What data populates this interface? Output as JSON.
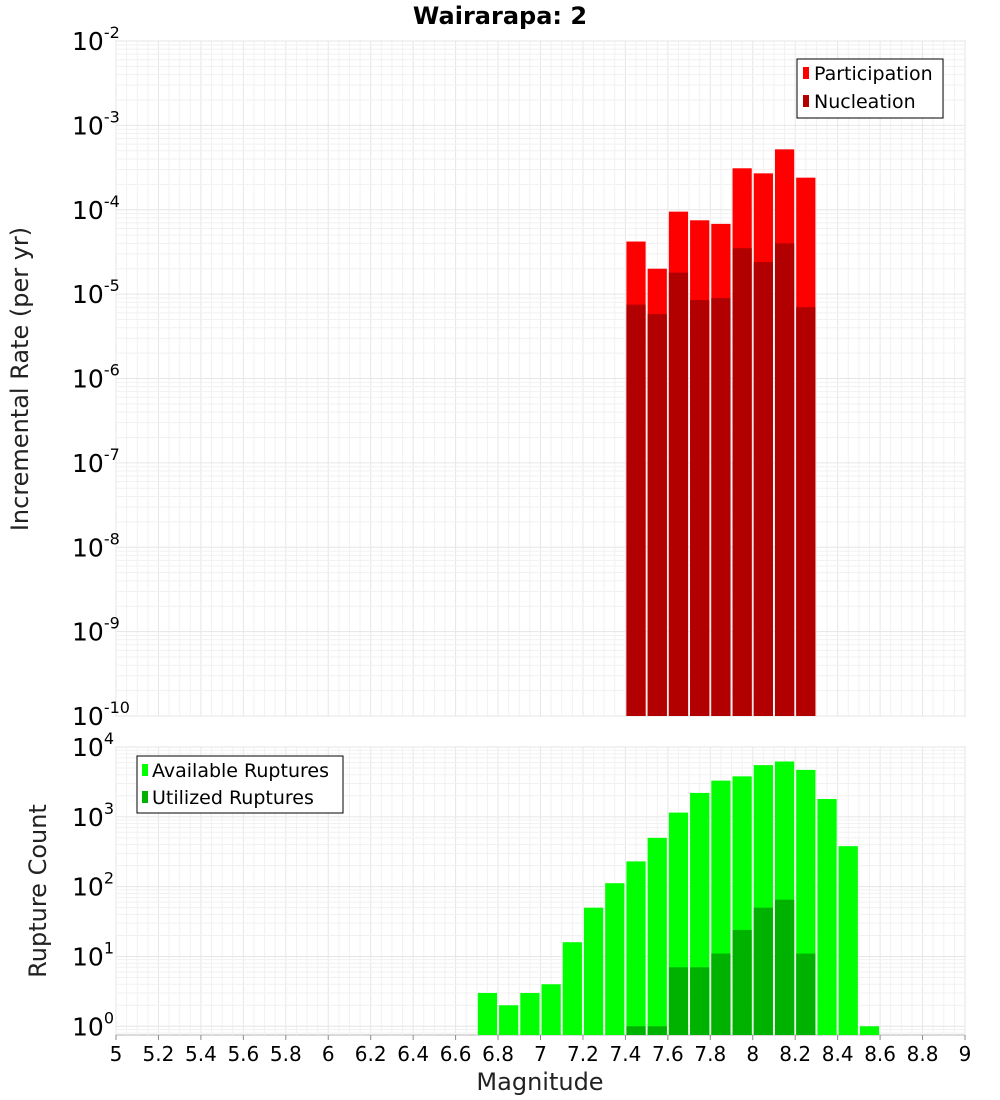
{
  "title": "Wairarapa: 2",
  "chart_data": [
    {
      "type": "bar",
      "ylabel": "Incremental Rate (per yr)",
      "xlabel": "",
      "yscale": "log",
      "ylim": [
        1e-10,
        0.01
      ],
      "xlim": [
        5,
        9
      ],
      "grid": true,
      "legend_position": "top-right",
      "y_tick_exponents": [
        "-10",
        "-9",
        "-8",
        "-7",
        "-6",
        "-5",
        "-4",
        "-3",
        "-2"
      ],
      "y_tick_base": "10",
      "bin_width": 0.1,
      "x": [
        7.45,
        7.55,
        7.65,
        7.75,
        7.85,
        7.95,
        8.05,
        8.15,
        8.25
      ],
      "series": [
        {
          "name": "Participation",
          "color": "#ff0000",
          "values": [
            4.2e-05,
            2e-05,
            9.5e-05,
            7.5e-05,
            6.8e-05,
            0.00031,
            0.00027,
            0.00052,
            0.00024
          ]
        },
        {
          "name": "Nucleation",
          "color": "#b20000",
          "values": [
            7.5e-06,
            5.8e-06,
            1.8e-05,
            8.5e-06,
            9e-06,
            3.5e-05,
            2.4e-05,
            4e-05,
            7e-06
          ]
        }
      ]
    },
    {
      "type": "bar",
      "ylabel": "Rupture Count",
      "xlabel": "Magnitude",
      "yscale": "log",
      "ylim": [
        0.75,
        10000
      ],
      "xlim": [
        5,
        9
      ],
      "grid": true,
      "legend_position": "top-left",
      "y_tick_exponents": [
        "0",
        "1",
        "2",
        "3",
        "4"
      ],
      "y_tick_base": "10",
      "x_ticks": [
        "5",
        "5.2",
        "5.4",
        "5.6",
        "5.8",
        "6",
        "6.2",
        "6.4",
        "6.6",
        "6.8",
        "7",
        "7.2",
        "7.4",
        "7.6",
        "7.8",
        "8",
        "8.2",
        "8.4",
        "8.6",
        "8.8",
        "9"
      ],
      "bin_width": 0.1,
      "x": [
        6.75,
        6.85,
        6.95,
        7.05,
        7.15,
        7.25,
        7.35,
        7.45,
        7.55,
        7.65,
        7.75,
        7.85,
        7.95,
        8.05,
        8.15,
        8.25,
        8.35,
        8.45,
        8.55
      ],
      "series": [
        {
          "name": "Available Ruptures",
          "color": "#00ff00",
          "values": [
            3,
            2,
            3,
            4,
            16,
            50,
            112,
            230,
            500,
            1150,
            2200,
            3300,
            3800,
            5500,
            6200,
            4700,
            1800,
            380,
            1
          ]
        },
        {
          "name": "Utilized Ruptures",
          "color": "#00b200",
          "values": [
            0,
            0,
            0,
            0,
            0,
            0,
            0,
            1,
            1,
            7,
            7,
            11,
            24,
            50,
            65,
            11,
            0,
            0,
            0
          ]
        }
      ]
    }
  ]
}
